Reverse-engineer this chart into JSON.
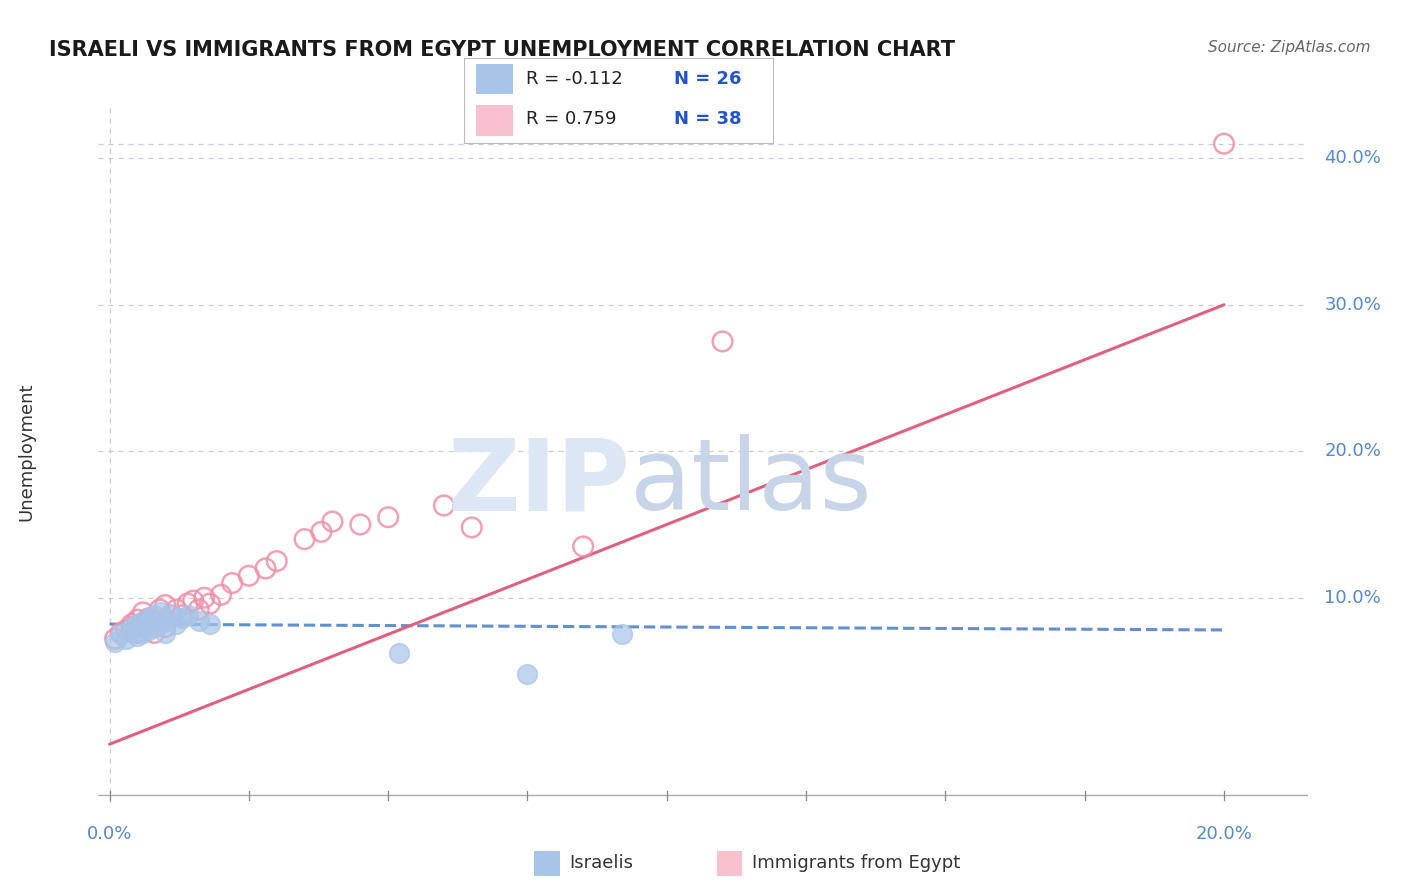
{
  "title": "ISRAELI VS IMMIGRANTS FROM EGYPT UNEMPLOYMENT CORRELATION CHART",
  "source": "Source: ZipAtlas.com",
  "ylabel": "Unemployment",
  "ytick_labels": [
    "10.0%",
    "20.0%",
    "30.0%",
    "40.0%"
  ],
  "ytick_values": [
    0.1,
    0.2,
    0.3,
    0.4
  ],
  "xtick_labels": [
    "0.0%",
    "20.0%"
  ],
  "xtick_values": [
    0.0,
    0.2
  ],
  "xlim": [
    -0.002,
    0.215
  ],
  "ylim": [
    -0.04,
    0.435
  ],
  "legend_R1": "R = -0.112",
  "legend_N1": "N = 26",
  "legend_R2": "R = 0.759",
  "legend_N2": "N = 38",
  "israelis_color": "#a8c4e8",
  "egypt_color_fill": "#f9c0ce",
  "egypt_color_edge": "#f090a8",
  "israelis_line_color": "#6090d0",
  "egypt_line_color": "#e06080",
  "israelis_x": [
    0.001,
    0.002,
    0.003,
    0.004,
    0.004,
    0.005,
    0.005,
    0.006,
    0.006,
    0.007,
    0.007,
    0.008,
    0.008,
    0.009,
    0.009,
    0.01,
    0.01,
    0.011,
    0.012,
    0.013,
    0.014,
    0.016,
    0.018,
    0.052,
    0.075,
    0.092
  ],
  "israelis_y": [
    0.07,
    0.075,
    0.072,
    0.078,
    0.08,
    0.074,
    0.082,
    0.076,
    0.084,
    0.078,
    0.086,
    0.08,
    0.088,
    0.082,
    0.09,
    0.076,
    0.084,
    0.088,
    0.082,
    0.086,
    0.088,
    0.084,
    0.082,
    0.062,
    0.048,
    0.075
  ],
  "egypt_x": [
    0.001,
    0.002,
    0.003,
    0.004,
    0.004,
    0.005,
    0.005,
    0.006,
    0.006,
    0.007,
    0.007,
    0.008,
    0.009,
    0.01,
    0.01,
    0.011,
    0.012,
    0.013,
    0.014,
    0.015,
    0.016,
    0.017,
    0.018,
    0.02,
    0.022,
    0.025,
    0.028,
    0.03,
    0.035,
    0.038,
    0.04,
    0.045,
    0.05,
    0.06,
    0.065,
    0.085,
    0.11,
    0.2
  ],
  "egypt_y": [
    0.072,
    0.076,
    0.078,
    0.08,
    0.082,
    0.076,
    0.085,
    0.082,
    0.09,
    0.084,
    0.086,
    0.076,
    0.092,
    0.08,
    0.095,
    0.088,
    0.092,
    0.088,
    0.096,
    0.098,
    0.092,
    0.1,
    0.096,
    0.102,
    0.11,
    0.115,
    0.12,
    0.125,
    0.14,
    0.145,
    0.152,
    0.15,
    0.155,
    0.163,
    0.148,
    0.135,
    0.275,
    0.41
  ],
  "isr_trend_x": [
    0.0,
    0.2
  ],
  "isr_trend_y": [
    0.082,
    0.078
  ],
  "eg_trend_x": [
    0.0,
    0.2
  ],
  "eg_trend_y": [
    0.0,
    0.3
  ],
  "grid_line_color": "#c8ccd8",
  "border_color": "#c8ccd8",
  "axis_label_color": "#5588cc",
  "watermark_zip_color": "#dde6f4",
  "watermark_atlas_color": "#c8d4e8"
}
